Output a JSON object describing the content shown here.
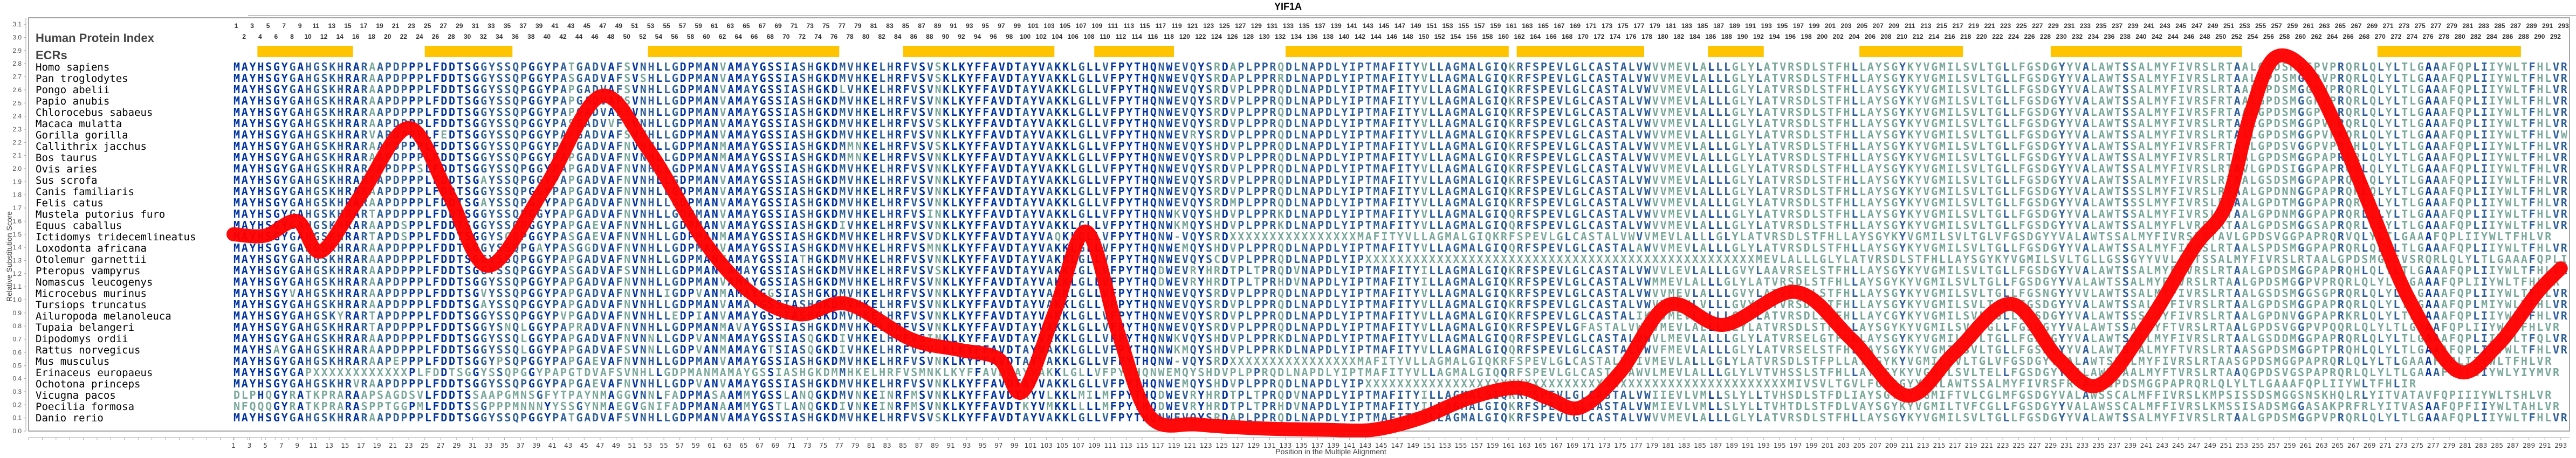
{
  "title": "YIF1A",
  "header": {
    "protein_index_label": "Human Protein Index",
    "ecr_label": "ECRs"
  },
  "axes": {
    "ylabel": "Relative Substitution Score",
    "xlabel": "Position in the Multiple Alignment",
    "yticks": [
      "0.0",
      "0.1",
      "0.2",
      "0.3",
      "0.4",
      "0.5",
      "0.6",
      "0.7",
      "0.8",
      "0.9",
      "1.0",
      "1.1",
      "1.2",
      "1.3",
      "1.4",
      "1.5",
      "1.6",
      "1.7",
      "1.8",
      "1.9",
      "2.0",
      "2.1",
      "2.2",
      "2.3",
      "2.4",
      "2.5",
      "2.6",
      "2.7",
      "2.8",
      "2.9",
      "3.0",
      "3.1"
    ],
    "x_start": 1,
    "x_end": 293
  },
  "colors": {
    "curve": "#ff0000",
    "ecr_bar": "#ffc400",
    "aa_conserved": "#0033a0",
    "aa_mid": "#2e5f9a",
    "aa_variable": "#7aa89a",
    "frame": "#888888"
  },
  "species": [
    "Homo sapiens",
    "Pan troglodytes",
    "Pongo abelii",
    "Papio anubis",
    "Chlorocebus sabaeus",
    "Macaca mulatta",
    "Gorilla gorilla",
    "Callithrix jacchus",
    "Bos taurus",
    "Ovis aries",
    "Sus scrofa",
    "Canis familiaris",
    "Felis catus",
    "Mustela putorius furo",
    "Equus caballus",
    "Ictidomys tridecemlineatus",
    "Loxodonta africana",
    "Otolemur garnettii",
    "Pteropus vampyrus",
    "Nomascus leucogenys",
    "Microcebus murinus",
    "Tursiops truncatus",
    "Ailuropoda melanoleuca",
    "Tupaia belangeri",
    "Dipodomys ordii",
    "Rattus norvegicus",
    "Mus musculus",
    "Erinaceus europaeus",
    "Ochotona princeps",
    "Vicugna pacos",
    "Poecilia formosa",
    "Danio rerio"
  ],
  "sequences": [
    "MAYHSGYGAHGSKHRARAAPDPPPLFDDTSGGYSSQPGGYPATGADVAFSVNHLLGDPMANVAMAYGSSIASHGKDMVHKELHRFVSVSKLKYFFAVDTAYVAKKLGLLVFPYTHQNWEVQYSRDAPLPPRQDLNAPDLYIPTMAFITYVLLAGMALGIQKRFSPEVLGLCASTALVWVVMEVLALLLGLYLATVRSDLSTFHLLAYSGYKYVGMILSVLTGLLFGSDGYYVALAWTSSALMYFIVRSLRTAALGPDSMGGPVPRQRLQLYLTLGAAAFQPLIIYWLTFHLVR",
    "MAYHSGYGAHGSKHRARAAPDPPPLFDDTSGGYSSQPGGYPASGADVAFSVSHLLGDPMANVAMAYGSSIASHGKDMVHKELHRFVSVSKLKYFFAVDTAYVAKKLGLLVFPYTHQNWEVQYSRDAPLPPRRDLNAPDLYIPTMAFITYVLLAGMALGIQKRFSPEVLGLCASTALVWVVMEVLALLLGLYLATVRSDLSTFHLLAYSGYKYVGMILSVLTGLLFGSDGYYVALAWTSSALMYFIVRSLRTAALGPDSMGGPVPRQRLQLYLTLGAAAFQPLIIYWLTFHLVR",
    "MAYHSGYGAHGSKHRARAAPDPPPLFDDTSGGYSSQPGGYPAPGADVAFSVNHLLGDPMANVAMAYGSSIASHGKDLVHKELHRFVSVNKLKYFFAVDTAYVAKKLGLLVFPYTHQNWEVQYSRDVPLPPRQDLNAPDLYIPTMAFITYVLLAGMALGIQKRFSPEVLGLCASTALVWVVMEVLALLLGLYLATVRSDLSTFHLLAYSGYKYVGMILSVLTGLLFGSDGYYVALAWTSSALMYFIVRSLRTAALGPDSMGGPVPRQRLQLYLTLGAAAFQPLIIYWLTFHLVR",
    "MAYHSGYGAHGSKHRARAAPDPPPLFDDTSGGYSSQPGGYPAPGADVAFSVNHLLGDPMANVAMAYGSSIASHGKDMVHKELHRFVSVNKLKYFFAVDTAYVAKKLGLLVFPYTHQNWEVQYSRDVPLPPRQDLNAPDLYIPTMAFITYVLLAGMALGIQKRFSPEVLGLCASTALVWVVMEVLALLLGLYLATVRSDLSTFHLLAYSGYKYVGMILSVLTGLLFGSDGYYVALAWTSSALMYFIVRSFRTAALGPDSMGGPVPRQRLQLYLTLGAAAFQPLIIYWLTFHLVR",
    "MAYHSGYGAHGSKHRARAAPDPPPLFDDTSGGYSSQPGGYPAPGADVAFSVNHLLGDPMANVAMAYGSSIASHGKDMVHKELHRFVSVNKLKYFFAVDTAYVAKKLGLLVFPYTHQNWEVQYSRDVPLPPRQDLNAPDLYIPTMAFITYVLLAGMALGIQKRFSPEVLGLCASTALVWVVMEVLALLLGLYLATVRSDLSTFHLLAYSGYKYVGMILSVLTGLLFGSDGYYVALAWTSSALMYFIVRSFRTAALGPDSMGGPVPRQRLQLYLTLGAAAFQPLIIYWLTFHLVR",
    "MAYHSGYGAHGSKHRARAAPDPPPLFDDTSGGYSSQPGGYPASGADVVFSVNHLLGDPMANVAMAYGSSIASHGKDMVHKELHRFVSVSKLKYFFAVDTAYVAKKLGLLVFPYTHQNWEVQYSRDVPLPPRQDLNAPDLYIPTMAFITYVLLAGMALGIQKRFSPEVLGLCASTALVWVVMEVLALLLGLYLATVRSDLSTFHLLAYSGYKYVGMILSVLTGLLFGSDGYYVALAWTSSALMYFIVRSLRTAALGPDSMGGPVPRQRLQLYLTLGAAAFQPLIIYWLTFHLVR",
    "MAYHSGYGAHGSKHRARVAPDPPPLFEDTSGGYSSQPGGYPAPGADVAFSVNHLLGDPMANVAMAYGSSIASHGKDMVHKELHRFVSVNKLKYFFAVDTAYVAKKLGLLVFPYTHQNWEVRYSRDVPLPPRQDLNAPDLYIPTMAFITYVLLAGMALGIQKRFSPEVLGLCASTALVWVVMEVLALLLGLYLATVRSDLSTFHLLAYSGYKYVGMILSVLTGLLFGSDGYYVALAWTSSALMYFIVRSLRTAALGPDSMGGPVPRQRLQLYLTLGAAAFQPLIIYWLTFHLVW",
    "MAYHSGYGAHGSKHRARAAPDPPPLFDDTSGGYSSQPGGYPAPGADVAFNVNHLLGDPMANMAMAYGSSIASHGKDMMNKELHRFVSVSKLKYFFAVDTAYVAKKLGLLVFPYTHQNWEVQYSHDVPLPPRQDLNAPDLYIPTMAFITYVLLAGMALGIQKRFSPEVLGLCASTALVWVVMEVLALLLGLYLATVRSDLSTFHLLAYSGYKYVGMILSVLTGLLFGSDGYYVALAWTSSALMYFIVRSFRTAALGPDSVGGPVPRQHLQLYLTLGAAAFQPLIIYWLTFHLVR",
    "MAYHSGYGAHGSKHRARAAPDPPPLFDDTSGGYSSQPGGYPAPGADVAFNVNHLLGDPMANMAMAYGSSIASHGKDMMNKELHRFVSVNKLKYFFAVDTAYVAKKLGLLVFPYTHQNWEVQYSRDVPLPPRQDLNAPDLYIPTMAFITYVLLAGMALGIQKRFSPEVLGLCASTALVWVVMEVLALLLGLYLATVRSDLSTFHLLAYSGYKYVGMILSVLTGLLFGSDGYYVALAWTSSALMYFIVRSLRTAALGPDSMGGPAPRQRLQLYLTLGAAAFQPLIIYWLTFHLVR",
    "MAYHSGYGAHGSKHRARAAPDPPSLFDDTSGGYSSQPGGYPAPGADVAFNVNHLLGDPMANVAMAYGSSIASHGKDMVHKELHRFVSVNKLKYFFAVDTAYVAKKLGLLVFPYTHQNWEVQYSRDVPLPPRQDLNAPDLYIPTMAFITYVLLAGMALGIQKRFSPEVLGLCASTALVWVVMEVLALLLGLYLATVRSDLSTFHLLAYSGYKYVGMILSVLTGLLFGSDGYYVALAWTSSALMYFIVRSLRTAVLGPDSIGGPAPRQRLQLYLTLGAAAFQPLIIYWLTFHLVR",
    "MAYHSGYGAHGSKHRARAAPDPPPLFDDTSGAYSSQPGGYPAPGADVAFNVNHLLGDPMANVAMAYGSSIASHGKDMVHKELHRFVSVNKLKYFFAVDTAYVAKKLGLLVFPYTHQNWEVQYSRDVPLPPRQDLNAPDLYIPTMAFITYVLLAGMALGIQKRFSPEVLGLCASTALVWVVMEVLALLLGLYLATVRSDLSTFHLLAYSGYKYVGMILSVLTGLLFGSDGYYVALAWTSSALMYFIVRSLRTAALGSDSMGGPAPRQRLQLYLTLGAAAFQPLIIYWLTFHLVR",
    "MAYHSGYGAHGSKHRARAAPDPPPLFDDTSGGYSSQPGGYPAPGADVAFNVNHLLGDPMANVAMAYGSSIASHGKDMVHKELHRFVSVNKLKYFFAVDTAYVAKKLGLLVFPYTHQNWEVQYSRDVPLPPRQDLNAPDLYIPTMAFITYVLLAGMALGIQKRFSPEVLGLCASTALVWVVMEVLALLLGLYLATVRSDLSTFHLLAYSGYKYVGMILSVLTGLLFGSDGYYVALAWTSSSLMYFIVRSLRTAALGPDNNGGPAPRQRLQLYLTLGAAAFQPLIIYWLTFHLVR",
    "MAYHSGYGAHGSKHRARAAPDPPPLFDDTSGAYSSQPGEYPAPGADVAFNVNHLLGDPMANVAMAYGSSIASHGKDMVHKELHRFVSVNKLKYFFAVDTAYVAKKLGLLVFPYTHQNWEVQYSRDMPLPPRQDLNAPDLYIPTMAFITYVLLAGMALGIQKRFSPEVLGLCASTALVWVVMEVLALLLGLYLATVRSDLSTFHLLAYSGYKYVGMILSVLTGLLFGSDGYYVALAWTSSSLMYFIVRSLRTAALGPDTMGGPAPRQRLQLYLTLGAAAFQPLIIYWLTFHLVR",
    "MAYHSGYGAHGSKHRARTAPDPPPLFDDTSGGYSSQPGGYPAPGADVAFNVNHLLGDPMANVAMAYGSSIASHGKDMVHKELHRFVSINKLKYFFAVDTAYVAKKLGLLVFPYTHQNWKVQYSHDVPLPPRKDLNAPDLYIPTMAFITYVLLAGMALGIQQRFSPEVLGLCASTALVWVVMEVLALLLGLYLATVRSDLSTFHLLAYSGYKYVGMILSVLTGLLFGSDGYYVALAWTSSALMYFIVRSLRTAALGPDNMGGPAPRQRLQLYLTLGAAAFQPLIIYWLTFHLVR",
    "MAYHSGYGAHGSKHRARAAPDSPPLFDDTSGGYSSQPGGYPAPGAEVAFNVNHLLGDPMANVAMAYGSSIASHGKDIVHKELHRFVSVNKLKYFFAVDTAYVAKKLGLLVFPYTHQNWKMQYSHDVPLPPRKDLNAPDLYIPTMAFITYVLLAGMALGIQQRFSPEVLGLCASTALVWVVMEVLALLLGLYLATVRSDLSTFHLLAYSGYKYVGMILSVLTGLLFGSDGYYVALAWTSSALMYFLVRSLRTAALGPDSMGGSAPRQRLQLYLTLGAAAFQPLIIYWLTFHLVR",
    "MAYHSGYGAHGSKHRARTAPDSPPLFDDTSGGYSGQPGGYPASGAEVAFNVNHLLGDPMANMAMAYGSSIASHGKDMVHKELHRFVSVDKLKYFFAVDTAYVAQKLGLLVFPYTHQNW-VQYSRDXXXXXXXXXXXXXXXXMAFITYVLLAGMALGIQKRFSPEVLGLCASTALVWVVMEVLALLLGLYLATVRSDLSTFHLLAYSGYKYVGMILSVLTGLVFGSDGYYVALAWTSSALMYFIVRSLRTAVLGPDSVGGPAPRQRVQLYLTLGAAAFQPLIIYWLTFHLVR",
    "MAYHSGYGAHGSKHRARAAPDPPPLFDDTSGGYSSQPGAYPASGGDVAFNVNHLLGDPMANVAMAYGSSIASHGKDMVHKELHRFVSMNKLKYFFAVDTAYVAKKLGLLVFPYTHQNWEMQYSHDVPLPPRQDLNAPDLYIPTMAFITYVLLAGMALGIQQRFSPEVLGLCASTALAWVVMEVLALLLGLYLATVRSDLSTFHLLAYSGYKYVGMILSVLTGLLFGSDGYYVALAWTSSALMYFIVRSLRTAALSPDSMGGPAPRQRLQLYLTLGAAAFQPLIIYWLTFHLVR",
    "MAYHSGYGAHGSKHRARAAPDPPPLFDDTSGGYSSQPGGYPAPGADVAFNVNHLLGDPMANVAMAYGSSIATHGKDMVHKELHRFVSVNKLKYFFAVDTAYVAKKLGLLVFPYTHQNWEVQYSCDVPLPPRQDLNAPDLYIPXXXXXXXXXXXXXXXXXXXXXXXXXXXXXXXXXXXXXXXXXXXXXXXXXMEVLALLLGLYLATVRSDLSTFHLLAYSGYKYVGMILSVLTGLLGSSGYYVVLAWTSSALMYFIVRSLRTAALGPDSMGGSVSRQRLQLYLTLGAAAFQPLIIYWLTFHLVR",
    "MAYHSGYGAHGSKHRARAAPDPPPLFDDTSGGYSSQPGGYPASGADVAFSVNHLLGDPMANVAMAYGSSIASHGKDMVHKELHRFVSVSKLKYFFAVDTAYVAKKLGLLVFPYTHQDWEVRYHRDTPLTPRQDVNAPDLYIPTMAFITYILLAGMALGIQKRFSPEVLGLCASTALVWVVLEVLALLLGVYLAAVRSELSTFHLLAYSGYKYVGMILSVLTGLLFGSDGYYVALAWTSSALMYFIVRSLRTAALGPDSMGGPAPRQHLQLYLTLGAAAFQPLIIYWLTFHLVR",
    "MAYHSGYGAHGSKHRARAAPDPPPLFDDTSGGYSSQPGGYPAPGADVAFNVNHLLGDPMANVAMAYGSSIASHGKDMVHKELHRFVSVNKLKYFFAVDTAYVAKKLGLLVFPYTHQDWEVRYHRDTPLTPRHDVNAPDLYIPTMAFITYILLAGMALGIQKRFSPEVLGLCASTALVWMMEVLALLLGLYLATVRSDLSTFHLLAYSGYKYVGMILSVLTGLLFGSDGYYVALAWTSSALMYFIVRSLRTAALGPDSMGGPVPRQRLQLYLTLGAAAFQPLIIYWLTFHLVR",
    "MAYHSGYVAHGSKHRARAAPDPPPLFDDTSGVYSSQPGGYPAPGADVAFNVNHLIGDPVANMAMAYGGSIASHGKDMVHKELHRFVSVNKLKYFFAVDTAYVAKKLGLLVFPYTHQNWEVQYSRDVPLPPRQDLNAPDLYIPTMAFITYVLLAGMALGIQKRFSPEVLGLCASTALVWVVMEVLALLLGVYLATVRSDLSTFHLLAYSGYKYVGMILSVLTGLLFGSNGYYVVLAWTSSALMYFIVRSLRTAALGSDSMGGSGPRQRLQLYLTLGAAAFQPLIIYWLTFHLVR",
    "MAYHSGYGAHGSKHRARAAPDPPPLFDDTSGAYSSQPGGYPAPGADVAFNVNHLLGDPMANVAMAYGSSIASHGKDMVHKELHRFVSVNKLKYFFAVDTAYVAKKLGLLVFPYTHQNWEVQYSRDVPLPPRQDLNAPDLYIPTMAFITYVLLAGMALGIQKRFSPEVLGLCASTALVWVVMEVLVLLLGVYLATVRSDLSTFHLLAYSGYKYVGMILSVLTGLLFGSDGYYVALAWTSSALMYFIVRSLRTAALGPDSMGGPAPRQRLQLYLTLGAAAFQPLMIYWLTFHLVR",
    "MAYHSGYGAHGSKYRARTAPDPPPLFDDTSGGYSSQPGGYPVPGADVAFNVNHLLEDPIANVAMAYGSSIASHGKDMVHKELHRFVSVNKLKYFFAVDTAYVAKKLGLLVFPYTHQNWEVQYSRDVPLPPRQDLNAPDLYIPTMAFITYVLLAGMALGIQKRFSPEVLGLCASTALIKVVMEVLALLLGLYLATVRSDLSTFHLLAYCGYKYVGMILSVLTGLLFGSDGYYVALAWTSSSLMYFIVRSLRTAALGPDNVGGPAPRKRLQLYLTLGAAAFQPLIIYWLTFHLVR",
    "MAYHSGYGAHGSKHRARTAPDPPPLFDDTSGGYSNQLGGYPAPRADVAFNVNHLLGDPMANMAVAYGSSIASHGKDMVHKELHRFVSVNKLKYFFAVDTAYVAKKLGLLVFPYTHQNWEVQYSRDVPLPPRQDLNAPDLYIPTMAFITYVLLAGMALGIQKRFSPEVLGFASTALVWMVMEVLALLLGLYLATVRSDLSTFHLLAYSGYKYVGMILSVLTGLLFGSDGYYVALAWTSSALMYFTVRSLRTAALGPDSVGGPVPQQRLQLYLTLGAAAFQPLIIYWLTFHLVR",
    "MAYHSGYGAHGSKHRARAAPDPPPLFDDTSGGYSSQLGGYPAPGADVAFNVNNLLGDPVANMAMAYGSSIASQGKDIVHKELHRFVSINKLKYFFAVDTAYVAKKLGLLVFPYTHQNWKVQYSHDVPLPPRKDLNAPDLYIPTMAFITYVLLAGMALGIQQRFSPEVLGLCASTALVWVLMEVLALLLGLYLATVRSELGTFHLLAYSGYKYVGMILSVLTGLLFGSDGYYVALAWTSSALMYFIVRSLRTAALGSDDMGGPAPRQRLQLYLTLGAAAFQPLIIYWLTFQLVR",
    "MAYHSAYGAHGSKHRARAAPDPPPLFDDTSGGYSSQLGGYPAPGADVAFSVNNLLGDPVANMAMAYGTSIASQGKDIVHKELHRFVSVNKLKYFFAVDTAYVAKKLGLLVFPYTHQNWKMQYSHDVPLPPRKDLNAPDLYIPTMAFITYVLLAGMALGIQQRFSPEVLGLCASTALVWVFMEVLALLLGLYLATVRSELSTFHLLAYSGYKYVGMILSVLTGLLFGSDGYYVALAWTSSALMYFTVRSLRTAASGPDSMGGPTPRQHLQLYLTLGAAAFQPLIIYWLTFHLVR",
    "MAYHSGYGAHGSKHRARAAPEPPPLFDDTSGGYPSQPGGYPAPGAEVAFNVNHLLGDPMANVAMAYGSSIASHGKDMVHKELHRFVSVNKLKYFFAVDTAYVAKKLGLLVFPYTHQNW-VQYSRDXXXXXXXXXXXXXXXXMAFITYVLLAGMALGIQKRFSPEVLGLCASTALVWIVMEVLALLLGLYLATVRSDLSTFPLLAYSGYKYVGMILSVLTGLVFGSDGYYVALAWTSSALMYFIVRSLRTAASGPDSMGGPAPRQRLQLYLTLGAAAFQPLIIYWLTFHLVR",
    "MAYHSGYGAPXXXXXXXXXXXXPLFDDTSGGYSSQPGGYPAPGTDVAFSVNHLLGDPMANMAMAYGSSIASHGKDMMHKELHRFVSMNKLKYFFAVDTAYVAKKLGLLVFPYTHQNWEMQYSHDVPLPPRQDLNAPDLYIPTMAFITYVLLAGMALGIQQRFSPEVLGLCASTALAWVLMEVLALLLGLYLVTVHSSLSTFHLLAYSGYKYVGMILSVLTELLFGSDGYYVALAWTSAALMYFTVRSLRTAAQGPDSVGSPAPRQRLQLYLTLGAAAFQPLIIYWLYIYMVR",
    "MAYHSGYGAHGSKHRVRAAPDPPPLFDDTSGGYSSQPGGYPAPGAEVAFNVNHLLGDPVANVAMAYGSSIASHGKDMVHKELHRFVSVNKLKYFFAVDTAYVAKKLGLLVFPYTHQNWEMQYSHDVPLPPRQDLNAPDLYIPXXXXXXXXXXXXXXXXXXXXXXXXXXXXXXXXXXXXXXXXXXXXXXXXXXXXXMIVSVLTGVLFGSDGYYVALAWTSSALMYFIVRSFRTAALGPDSMGGPAPRQRLQLYLTLGAAAFQPLIIYWLTFHLIR",
    "DLPHQGYRATKPRARAAPSAGDSVLFDDTSSAAPGMNSGFYTPAYNMAGGVNNLFADPMASAAMMYGSSLANQGKDMVNKEINRFMSVNKLKYFFAVDTRYVLKKLMILMFPYTHQDWEVRYHRDTPLTPRQDVNAPDLYIPTMAFITYILLAGMALGIQKRFSPEVLGLCASTALVWIIEVLVMLLSLYLLTVHSDLSTFDLIAYSGYKYVGMIFTVLCGLMFGSDGYVALAWSSCALMFFIVRSLKMPSISSDSMGGSNSKHQLRLYITVATAVFQPIIIYWLTSHLVR",
    "NFQQQGYRATKPRARASPPTGGPMLFDDTSSGPPPMNNNYYSSGYNMAEGVGNIFADPMANAAMMYGSTLANQGKDIVNKEINRFMSVNKLKYFFAVDTKYVMKKLLLLMFPYTHQDWEVRYHRDTPLTPRHDVNAPDLYIPTMAFITYILLAGMALGIQKRFSPEVLGLCASTALVWMIEVLVMLLSLYLLTVHTDLSTFDLVAYSGYKYVGMILTVFCGLLFGSDGYYVALAWSSCALMFFIVRSLKMSSISADSMGGASAKPRFRLYITVASAAFQPFIIYWLTAHLVR"
  ],
  "ecr_bars": [
    {
      "start": 4,
      "end": 15
    },
    {
      "start": 25,
      "end": 35
    },
    {
      "start": 53,
      "end": 76
    },
    {
      "start": 85,
      "end": 103
    },
    {
      "start": 109,
      "end": 118
    },
    {
      "start": 133,
      "end": 160
    },
    {
      "start": 162,
      "end": 177
    },
    {
      "start": 186,
      "end": 192
    },
    {
      "start": 205,
      "end": 217
    },
    {
      "start": 229,
      "end": 252
    },
    {
      "start": 270,
      "end": 287
    }
  ],
  "chart_data": {
    "type": "line",
    "title": "YIF1A",
    "xlabel": "Position in the Multiple Alignment",
    "ylabel": "Relative Substitution Score",
    "xlim": [
      1,
      293
    ],
    "ylim": [
      0.0,
      3.1
    ],
    "grid": false,
    "legend": [],
    "series": [
      {
        "name": "Relative Substitution Score",
        "color": "#ff0000",
        "x": [
          1,
          5,
          9,
          12,
          17,
          23,
          28,
          33,
          40,
          47,
          53,
          60,
          66,
          72,
          78,
          86,
          92,
          97,
          100,
          104,
          108,
          112,
          116,
          122,
          130,
          138,
          144,
          150,
          156,
          162,
          166,
          170,
          175,
          181,
          188,
          197,
          204,
          211,
          217,
          224,
          230,
          235,
          241,
          247,
          251,
          254,
          257,
          261,
          265,
          269,
          274,
          280,
          285,
          290,
          293
        ],
        "y": [
          1.5,
          1.49,
          1.6,
          1.37,
          1.8,
          2.31,
          1.8,
          1.26,
          1.85,
          2.55,
          2.15,
          1.45,
          1.05,
          0.89,
          0.97,
          0.7,
          0.62,
          0.55,
          0.3,
          0.9,
          1.52,
          0.75,
          0.11,
          0.05,
          0.02,
          0.01,
          0.01,
          0.1,
          0.25,
          0.33,
          0.25,
          0.18,
          0.45,
          0.96,
          0.81,
          1.06,
          0.7,
          0.27,
          0.6,
          0.97,
          0.55,
          0.35,
          0.8,
          1.4,
          1.72,
          2.4,
          2.84,
          2.75,
          2.3,
          1.72,
          1.0,
          0.46,
          0.65,
          1.05,
          1.24
        ]
      }
    ]
  },
  "top_ruler": {
    "start": 1,
    "end": 293
  },
  "bottom_ruler": {
    "start": 1,
    "end": 293,
    "step": 2
  }
}
